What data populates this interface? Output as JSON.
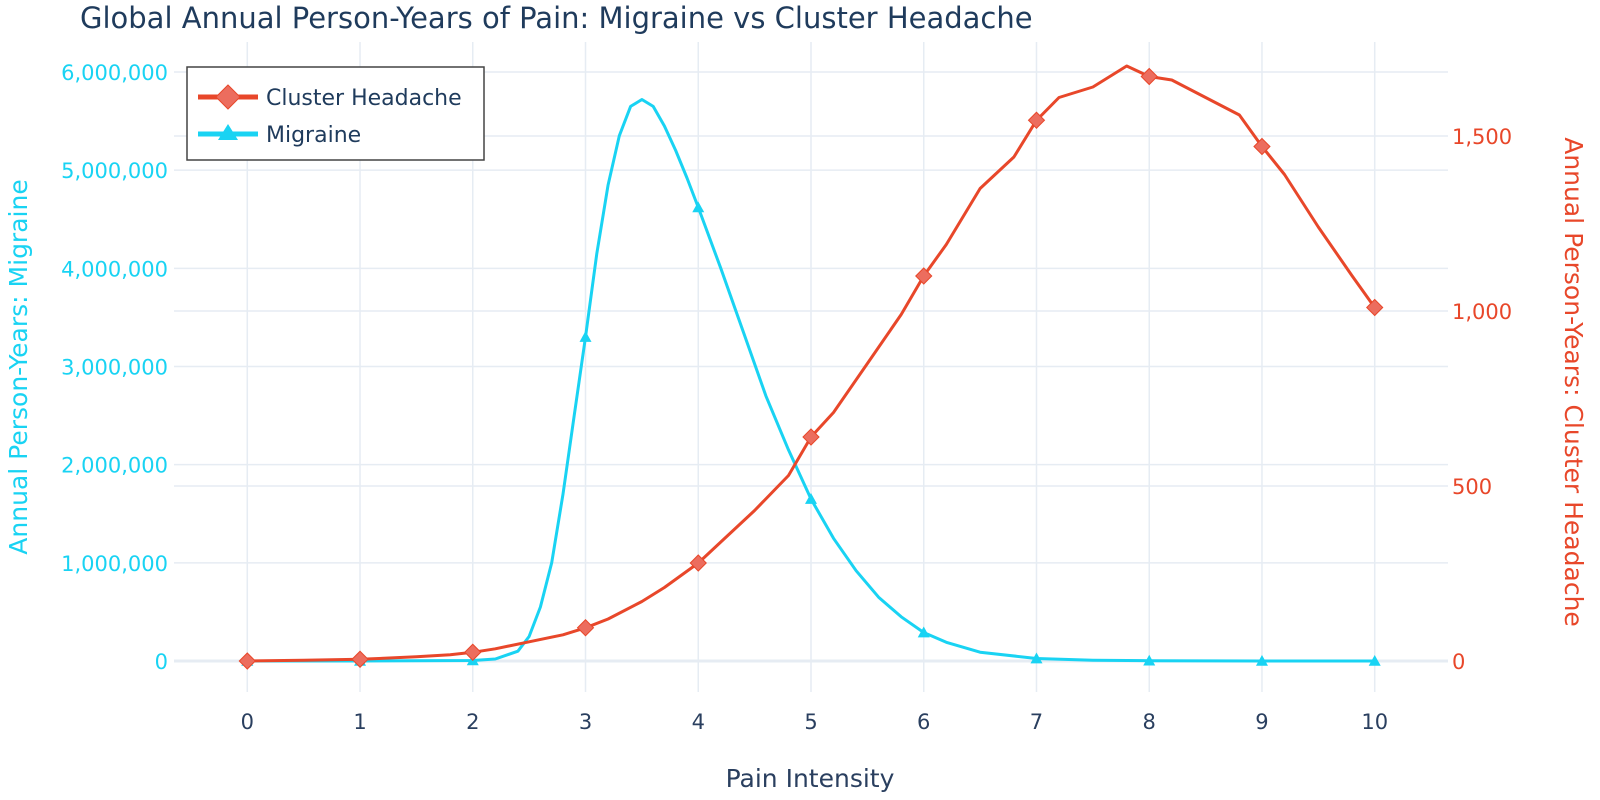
{
  "chart_data": {
    "type": "line",
    "title": "Global Annual Person-Years of Pain: Migraine vs Cluster Headache",
    "xlabel": "Pain Intensity",
    "ylabel_left": "Annual Person-Years: Migraine",
    "ylabel_right": "Annual Person-Years: Cluster Headache",
    "xlim": [
      -0.65,
      10.65
    ],
    "ylim_left": [
      0,
      6000000
    ],
    "ylim_right": [
      0,
      1820
    ],
    "x_ticks": [
      0,
      1,
      2,
      3,
      4,
      5,
      6,
      7,
      8,
      9,
      10
    ],
    "x_tick_labels": [
      "0",
      "1",
      "2",
      "3",
      "4",
      "5",
      "6",
      "7",
      "8",
      "9",
      "10"
    ],
    "y_left_ticks": [
      0,
      1000000,
      2000000,
      3000000,
      4000000,
      5000000,
      6000000
    ],
    "y_left_tick_labels": [
      "0",
      "1,000,000",
      "2,000,000",
      "3,000,000",
      "4,000,000",
      "5,000,000",
      "6,000,000"
    ],
    "y_right_ticks": [
      0,
      500,
      1000,
      1500
    ],
    "y_right_tick_labels": [
      "0",
      "500",
      "1,000",
      "1,500"
    ],
    "legend_position": "top-left",
    "series": [
      {
        "name": "Cluster Headache",
        "axis": "right",
        "color": "#e8472a",
        "marker_color": "#ec6d5e",
        "marker": "diamond",
        "x": [
          0,
          0.5,
          1,
          1.5,
          1.8,
          2,
          2.2,
          2.5,
          2.8,
          3,
          3.2,
          3.5,
          3.7,
          4,
          4.2,
          4.5,
          4.8,
          5,
          5.2,
          5.5,
          5.8,
          6,
          6.2,
          6.5,
          6.8,
          7,
          7.2,
          7.5,
          7.8,
          8,
          8.2,
          8.5,
          8.8,
          9,
          9.2,
          9.5,
          9.8,
          10
        ],
        "values": [
          0,
          2,
          5,
          12,
          18,
          25,
          35,
          55,
          75,
          95,
          120,
          170,
          210,
          280,
          340,
          430,
          530,
          640,
          710,
          850,
          990,
          1100,
          1190,
          1350,
          1440,
          1545,
          1610,
          1640,
          1700,
          1670,
          1660,
          1610,
          1560,
          1470,
          1390,
          1240,
          1100,
          1010
        ],
        "marker_x": [
          0,
          1,
          2,
          3,
          4,
          5,
          6,
          7,
          8,
          9,
          10
        ],
        "marker_values": [
          0,
          5,
          25,
          95,
          280,
          640,
          1100,
          1545,
          1670,
          1470,
          1010
        ]
      },
      {
        "name": "Migraine",
        "axis": "left",
        "color": "#19d3f3",
        "marker_color": "#19d3f3",
        "marker": "triangle-up",
        "x": [
          0,
          1,
          2,
          2.2,
          2.4,
          2.5,
          2.6,
          2.7,
          2.8,
          2.9,
          3,
          3.1,
          3.2,
          3.3,
          3.4,
          3.5,
          3.6,
          3.7,
          3.8,
          3.9,
          4,
          4.2,
          4.4,
          4.6,
          4.8,
          5,
          5.2,
          5.4,
          5.6,
          5.8,
          6,
          6.2,
          6.5,
          7,
          7.5,
          8,
          9,
          10
        ],
        "values": [
          0,
          0,
          5000,
          20000,
          100000,
          250000,
          550000,
          1000000,
          1700000,
          2500000,
          3300000,
          4150000,
          4850000,
          5350000,
          5650000,
          5720000,
          5650000,
          5450000,
          5200000,
          4920000,
          4620000,
          4000000,
          3350000,
          2700000,
          2150000,
          1650000,
          1250000,
          920000,
          650000,
          450000,
          290000,
          190000,
          90000,
          25000,
          8000,
          3000,
          500,
          0
        ],
        "marker_x": [
          0,
          1,
          2,
          3,
          4,
          5,
          6,
          7,
          8,
          9,
          10
        ],
        "marker_values": [
          0,
          0,
          5000,
          3300000,
          4620000,
          1650000,
          290000,
          25000,
          3000,
          500,
          0
        ]
      }
    ]
  }
}
